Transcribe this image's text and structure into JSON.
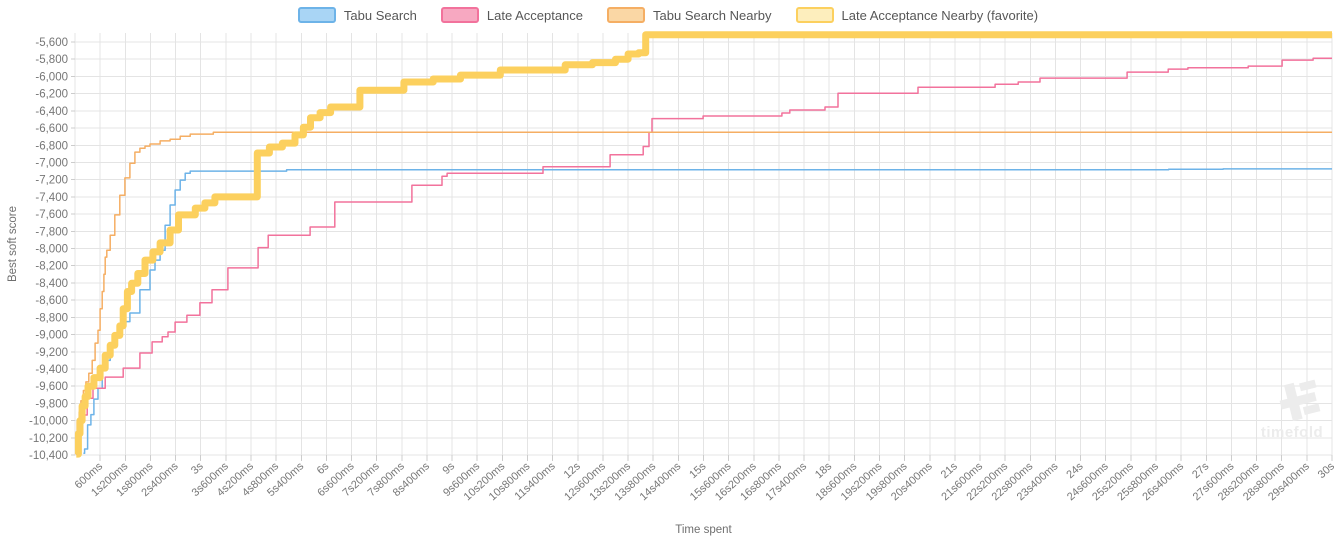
{
  "legend": {
    "items": [
      {
        "label": "Tabu Search",
        "fill": "#a9d5f5",
        "border": "#6db3e8"
      },
      {
        "label": "Late Acceptance",
        "fill": "#f7a8c1",
        "border": "#f2729c"
      },
      {
        "label": "Tabu Search Nearby",
        "fill": "#fad7a5",
        "border": "#f5ae63"
      },
      {
        "label": "Late Acceptance Nearby (favorite)",
        "fill": "#fdeebd",
        "border": "#fcd05e"
      }
    ]
  },
  "axes": {
    "y_title": "Best soft score",
    "x_title": "Time spent",
    "y_ticks": [
      "-5,600",
      "-5,800",
      "-6,000",
      "-6,200",
      "-6,400",
      "-6,600",
      "-6,800",
      "-7,000",
      "-7,200",
      "-7,400",
      "-7,600",
      "-7,800",
      "-8,000",
      "-8,200",
      "-8,400",
      "-8,600",
      "-8,800",
      "-9,000",
      "-9,200",
      "-9,400",
      "-9,600",
      "-9,800",
      "-10,000",
      "-10,200",
      "-10,400"
    ],
    "x_ticks": [
      "600ms",
      "1s200ms",
      "1s800ms",
      "2s400ms",
      "3s",
      "3s600ms",
      "4s200ms",
      "4s800ms",
      "5s400ms",
      "6s",
      "6s600ms",
      "7s200ms",
      "7s800ms",
      "8s400ms",
      "9s",
      "9s600ms",
      "10s200ms",
      "10s800ms",
      "11s400ms",
      "12s",
      "12s600ms",
      "13s200ms",
      "13s800ms",
      "14s400ms",
      "15s",
      "15s600ms",
      "16s200ms",
      "16s800ms",
      "17s400ms",
      "18s",
      "18s600ms",
      "19s200ms",
      "19s800ms",
      "20s400ms",
      "21s",
      "21s600ms",
      "22s200ms",
      "22s800ms",
      "23s400ms",
      "24s",
      "24s600ms",
      "25s200ms",
      "25s800ms",
      "26s400ms",
      "27s",
      "27s600ms",
      "28s200ms",
      "28s800ms",
      "29s400ms",
      "30s"
    ]
  },
  "watermark": {
    "text": "timefold"
  },
  "colors": {
    "grid": "#e4e4e4",
    "tick": "#cccccc",
    "tick_text": "#767676",
    "watermark": "#ececec"
  },
  "chart_data": {
    "type": "line",
    "step_style": "step-after",
    "title": "",
    "xlabel": "Time spent",
    "ylabel": "Best soft score",
    "x_unit": "seconds",
    "xlim": [
      0,
      30
    ],
    "ylim": [
      -10400,
      -5500
    ],
    "x_tick_interval_ms": 600,
    "y_tick_interval": 200,
    "grid": true,
    "legend_position": "top-center",
    "series": [
      {
        "name": "Tabu Search",
        "color": "#6db3e8",
        "width": 1.5,
        "final_score": -7075,
        "points": [
          [
            0.2,
            -10380
          ],
          [
            0.23,
            -10330
          ],
          [
            0.3,
            -10050
          ],
          [
            0.38,
            -9930
          ],
          [
            0.45,
            -9750
          ],
          [
            0.55,
            -9625
          ],
          [
            0.65,
            -9400
          ],
          [
            0.72,
            -9300
          ],
          [
            0.84,
            -9150
          ],
          [
            0.95,
            -9000
          ],
          [
            1.07,
            -8900
          ],
          [
            1.19,
            -8850
          ],
          [
            1.31,
            -8750
          ],
          [
            1.55,
            -8480
          ],
          [
            1.79,
            -8250
          ],
          [
            1.91,
            -8135
          ],
          [
            2.03,
            -8020
          ],
          [
            2.15,
            -7730
          ],
          [
            2.27,
            -7495
          ],
          [
            2.39,
            -7320
          ],
          [
            2.51,
            -7205
          ],
          [
            2.63,
            -7125
          ],
          [
            2.75,
            -7100
          ],
          [
            5.05,
            -7085
          ],
          [
            26.1,
            -7080
          ],
          [
            27.4,
            -7075
          ]
        ]
      },
      {
        "name": "Late Acceptance",
        "color": "#f2729c",
        "width": 1.5,
        "final_score": -5790,
        "points": [
          [
            0.07,
            -10390
          ],
          [
            0.1,
            -10150
          ],
          [
            0.13,
            -9935
          ],
          [
            0.29,
            -9740
          ],
          [
            0.43,
            -9625
          ],
          [
            0.72,
            -9495
          ],
          [
            1.15,
            -9390
          ],
          [
            1.55,
            -9215
          ],
          [
            1.84,
            -9085
          ],
          [
            2.08,
            -9025
          ],
          [
            2.22,
            -8970
          ],
          [
            2.39,
            -8855
          ],
          [
            2.67,
            -8775
          ],
          [
            2.98,
            -8630
          ],
          [
            3.27,
            -8480
          ],
          [
            3.65,
            -8225
          ],
          [
            4.37,
            -7990
          ],
          [
            4.61,
            -7845
          ],
          [
            5.61,
            -7750
          ],
          [
            6.2,
            -7460
          ],
          [
            8.04,
            -7265
          ],
          [
            8.76,
            -7160
          ],
          [
            8.88,
            -7125
          ],
          [
            11.17,
            -7050
          ],
          [
            12.77,
            -6910
          ],
          [
            13.56,
            -6815
          ],
          [
            13.7,
            -6650
          ],
          [
            13.77,
            -6490
          ],
          [
            14.99,
            -6460
          ],
          [
            16.87,
            -6425
          ],
          [
            17.06,
            -6390
          ],
          [
            17.9,
            -6355
          ],
          [
            18.21,
            -6195
          ],
          [
            20.12,
            -6125
          ],
          [
            21.96,
            -6090
          ],
          [
            22.51,
            -6065
          ],
          [
            23.03,
            -6020
          ],
          [
            25.11,
            -5950
          ],
          [
            26.09,
            -5915
          ],
          [
            26.56,
            -5900
          ],
          [
            28.0,
            -5880
          ],
          [
            28.81,
            -5810
          ],
          [
            29.55,
            -5790
          ]
        ]
      },
      {
        "name": "Tabu Search Nearby",
        "color": "#f5ae63",
        "width": 1.5,
        "final_score": -6650,
        "points": [
          [
            0.02,
            -10390
          ],
          [
            0.05,
            -10010
          ],
          [
            0.1,
            -9900
          ],
          [
            0.14,
            -9770
          ],
          [
            0.2,
            -9650
          ],
          [
            0.26,
            -9550
          ],
          [
            0.33,
            -9450
          ],
          [
            0.41,
            -9300
          ],
          [
            0.48,
            -9100
          ],
          [
            0.55,
            -8950
          ],
          [
            0.6,
            -8700
          ],
          [
            0.65,
            -8500
          ],
          [
            0.69,
            -8300
          ],
          [
            0.72,
            -8100
          ],
          [
            0.76,
            -8020
          ],
          [
            0.84,
            -7845
          ],
          [
            0.95,
            -7610
          ],
          [
            1.07,
            -7380
          ],
          [
            1.19,
            -7180
          ],
          [
            1.31,
            -7010
          ],
          [
            1.43,
            -6880
          ],
          [
            1.55,
            -6835
          ],
          [
            1.67,
            -6810
          ],
          [
            1.79,
            -6785
          ],
          [
            2.03,
            -6750
          ],
          [
            2.27,
            -6730
          ],
          [
            2.51,
            -6695
          ],
          [
            2.75,
            -6670
          ],
          [
            3.3,
            -6650
          ]
        ]
      },
      {
        "name": "Late Acceptance Nearby (favorite)",
        "color": "#fcd05e",
        "width": 7,
        "favorite": true,
        "final_score": -5515,
        "points": [
          [
            0.03,
            -10390
          ],
          [
            0.08,
            -10150
          ],
          [
            0.12,
            -10000
          ],
          [
            0.17,
            -9830
          ],
          [
            0.24,
            -9720
          ],
          [
            0.31,
            -9600
          ],
          [
            0.45,
            -9500
          ],
          [
            0.6,
            -9390
          ],
          [
            0.72,
            -9240
          ],
          [
            0.84,
            -9125
          ],
          [
            0.95,
            -9010
          ],
          [
            1.07,
            -8900
          ],
          [
            1.15,
            -8700
          ],
          [
            1.25,
            -8500
          ],
          [
            1.35,
            -8405
          ],
          [
            1.5,
            -8290
          ],
          [
            1.67,
            -8135
          ],
          [
            1.86,
            -8040
          ],
          [
            2.03,
            -7935
          ],
          [
            2.27,
            -7785
          ],
          [
            2.47,
            -7610
          ],
          [
            2.87,
            -7530
          ],
          [
            3.1,
            -7470
          ],
          [
            3.34,
            -7400
          ],
          [
            4.35,
            -6890
          ],
          [
            4.64,
            -6820
          ],
          [
            4.95,
            -6775
          ],
          [
            5.25,
            -6680
          ],
          [
            5.45,
            -6590
          ],
          [
            5.62,
            -6480
          ],
          [
            5.85,
            -6420
          ],
          [
            6.1,
            -6355
          ],
          [
            6.8,
            -6160
          ],
          [
            7.85,
            -6065
          ],
          [
            8.55,
            -6030
          ],
          [
            9.2,
            -5985
          ],
          [
            10.15,
            -5925
          ],
          [
            11.7,
            -5865
          ],
          [
            12.35,
            -5840
          ],
          [
            12.9,
            -5800
          ],
          [
            13.2,
            -5740
          ],
          [
            13.45,
            -5725
          ],
          [
            13.62,
            -5515
          ]
        ]
      }
    ]
  }
}
